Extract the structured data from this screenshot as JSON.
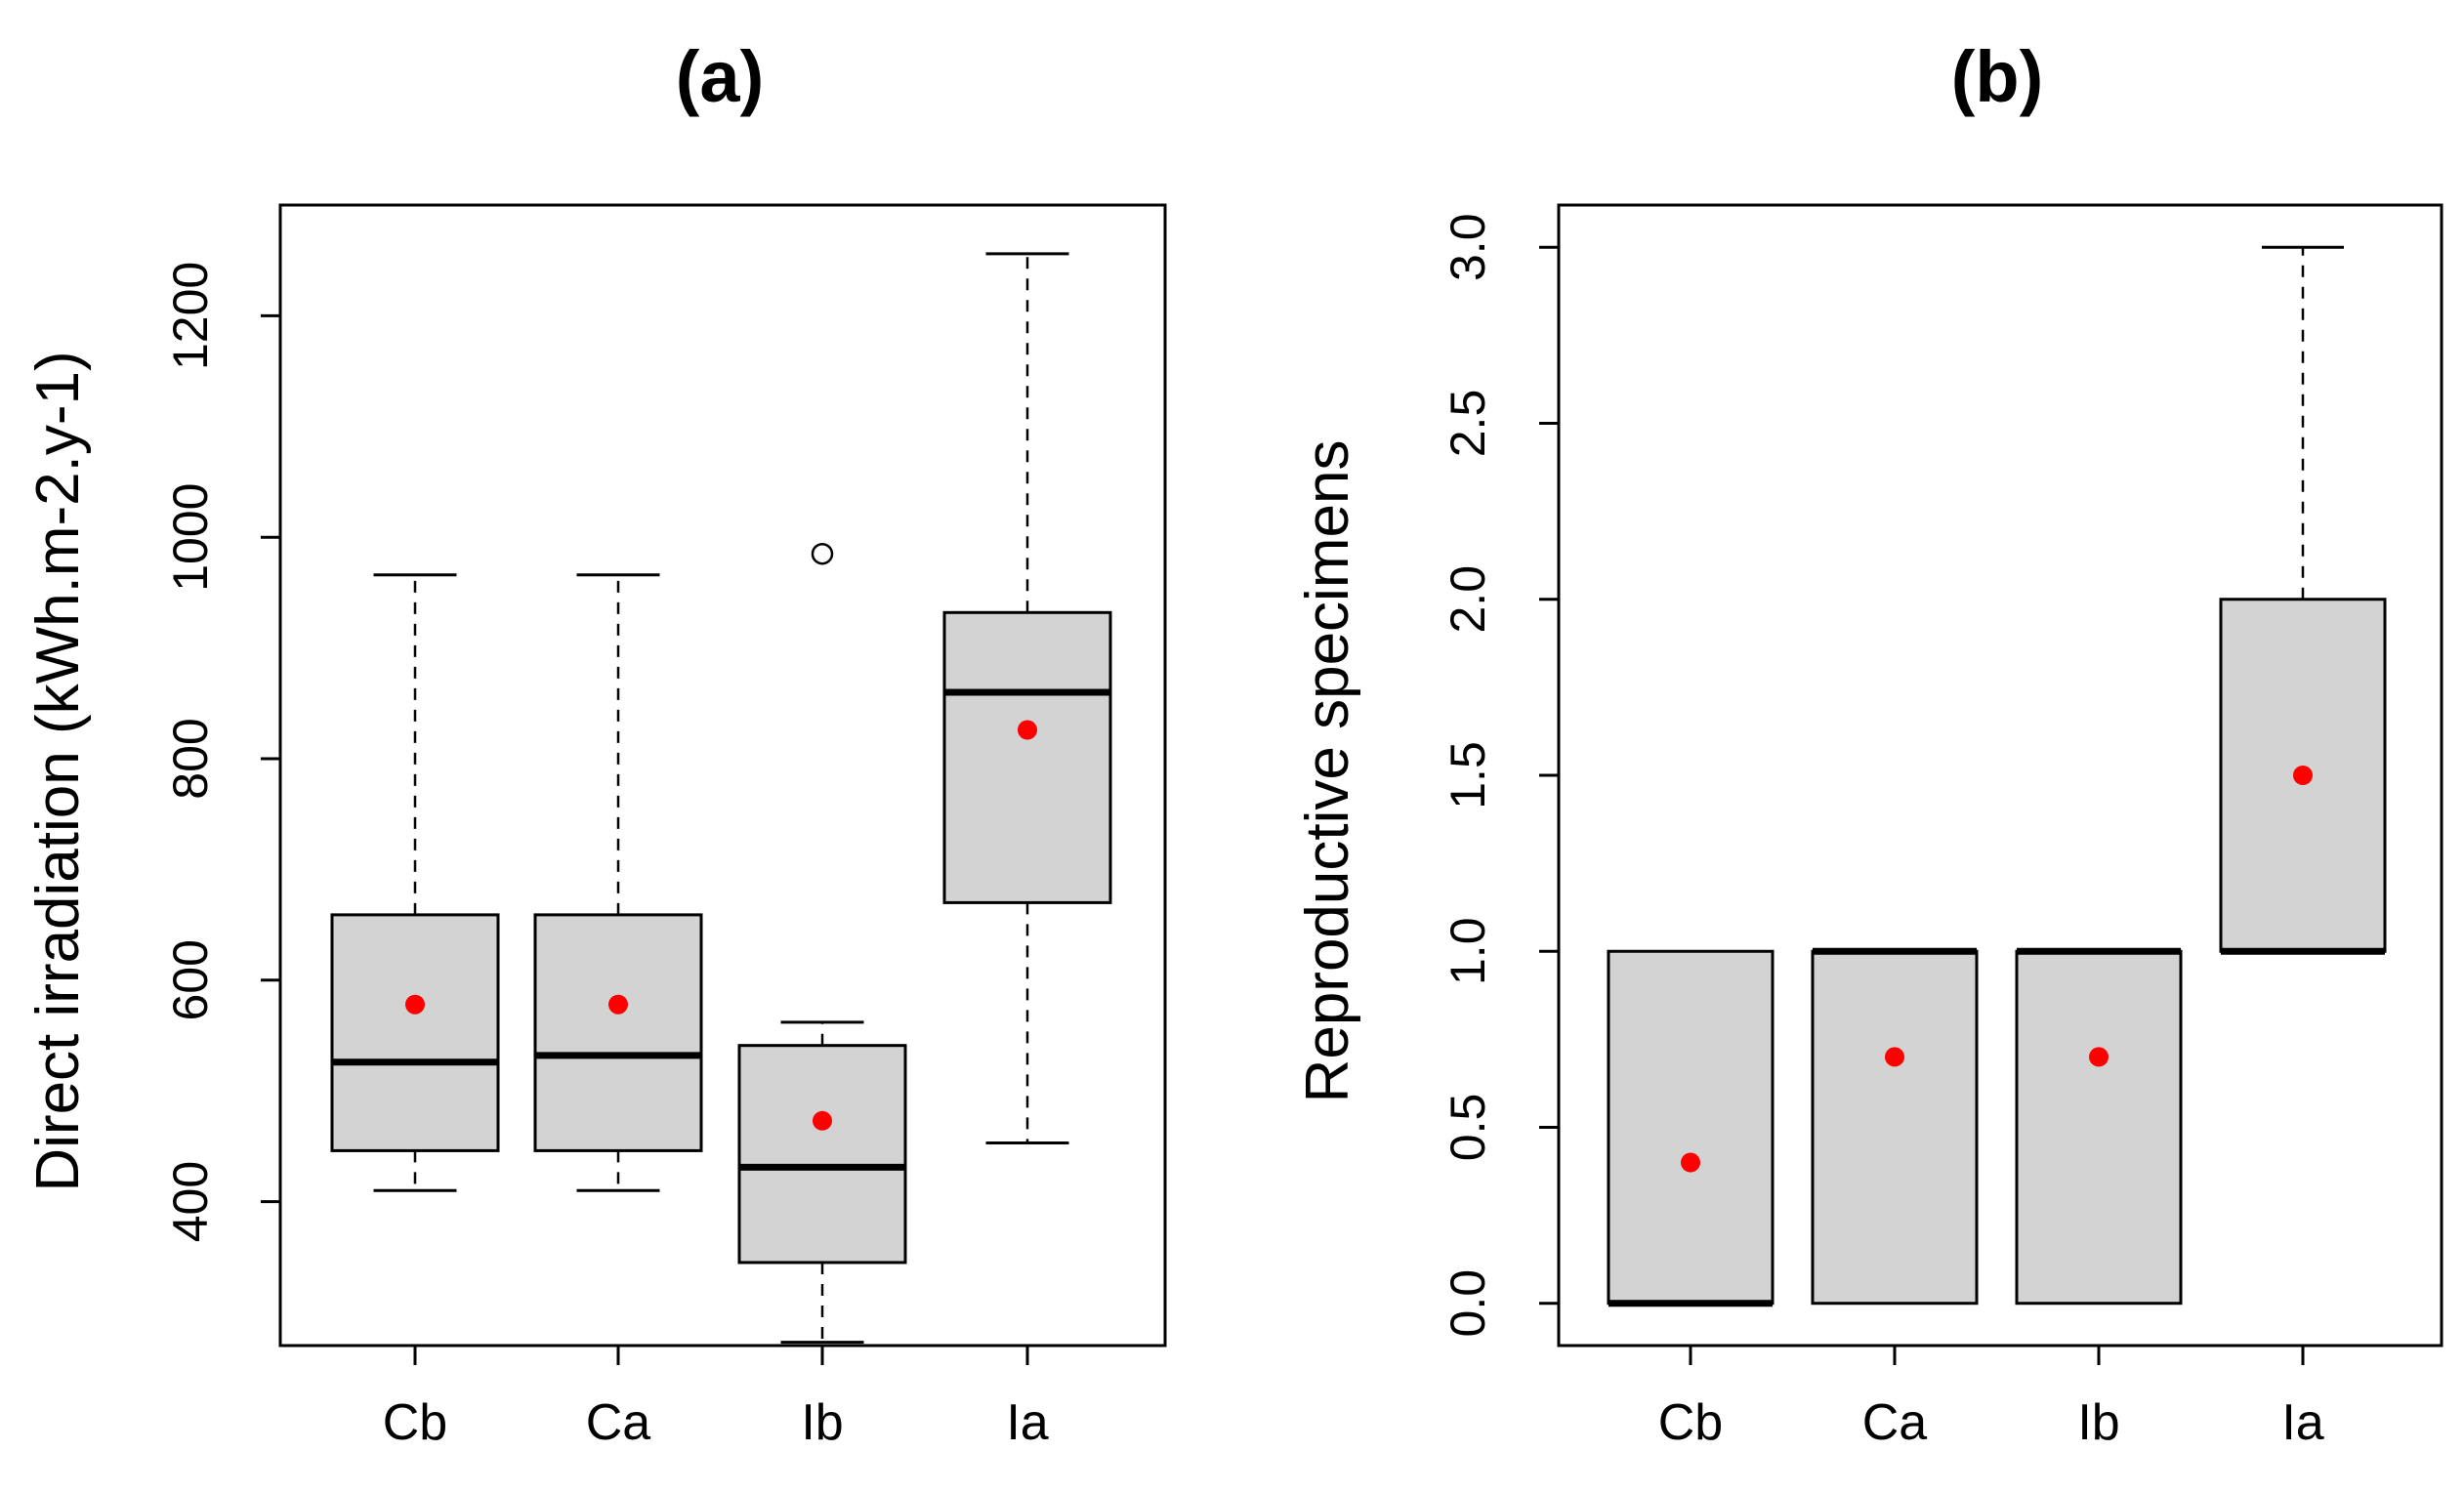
{
  "chart_data": [
    {
      "type": "boxplot",
      "title": "(a)",
      "xlabel": "",
      "ylabel": "Direct irradiation (kWh.m-2.y-1)",
      "categories": [
        "Cb",
        "Ca",
        "Ib",
        "Ia"
      ],
      "ylim": [
        270,
        1300
      ],
      "yticks": [
        400,
        600,
        800,
        1000,
        1200
      ],
      "ytick_labels": [
        "400",
        "600",
        "800",
        "1000",
        "1200"
      ],
      "boxes": [
        {
          "category": "Cb",
          "whisker_low": 410,
          "q1": 446,
          "median": 526,
          "q3": 659,
          "whisker_high": 966,
          "mean": 578,
          "outliers": []
        },
        {
          "category": "Ca",
          "whisker_low": 410,
          "q1": 446,
          "median": 532,
          "q3": 659,
          "whisker_high": 966,
          "mean": 578,
          "outliers": []
        },
        {
          "category": "Ib",
          "whisker_low": 273,
          "q1": 345,
          "median": 431,
          "q3": 541,
          "whisker_high": 562,
          "mean": 473,
          "outliers": [
            985
          ]
        },
        {
          "category": "Ia",
          "whisker_low": 453,
          "q1": 670,
          "median": 860,
          "q3": 932,
          "whisker_high": 1256,
          "mean": 826,
          "outliers": []
        }
      ]
    },
    {
      "type": "boxplot",
      "title": "(b)",
      "xlabel": "",
      "ylabel": "Reproductive specimens",
      "categories": [
        "Cb",
        "Ca",
        "Ib",
        "Ia"
      ],
      "ylim": [
        -0.12,
        3.12
      ],
      "yticks": [
        0,
        0.5,
        1,
        1.5,
        2,
        2.5,
        3
      ],
      "ytick_labels": [
        "0.0",
        "0.5",
        "1.0",
        "1.5",
        "2.0",
        "2.5",
        "3.0"
      ],
      "boxes": [
        {
          "category": "Cb",
          "whisker_low": 0,
          "q1": 0,
          "median": 0,
          "q3": 1,
          "whisker_high": 1,
          "mean": 0.4,
          "outliers": []
        },
        {
          "category": "Ca",
          "whisker_low": 0,
          "q1": 0,
          "median": 1,
          "q3": 1,
          "whisker_high": 1,
          "mean": 0.7,
          "outliers": []
        },
        {
          "category": "Ib",
          "whisker_low": 0,
          "q1": 0,
          "median": 1,
          "q3": 1,
          "whisker_high": 1,
          "mean": 0.7,
          "outliers": []
        },
        {
          "category": "Ia",
          "whisker_low": 1,
          "q1": 1,
          "median": 1,
          "q3": 2,
          "whisker_high": 3,
          "mean": 1.5,
          "outliers": []
        }
      ]
    }
  ],
  "colors": {
    "box_fill": "#d3d3d3",
    "line": "#000000",
    "mean_point": "#ff0000",
    "background": "#ffffff"
  }
}
